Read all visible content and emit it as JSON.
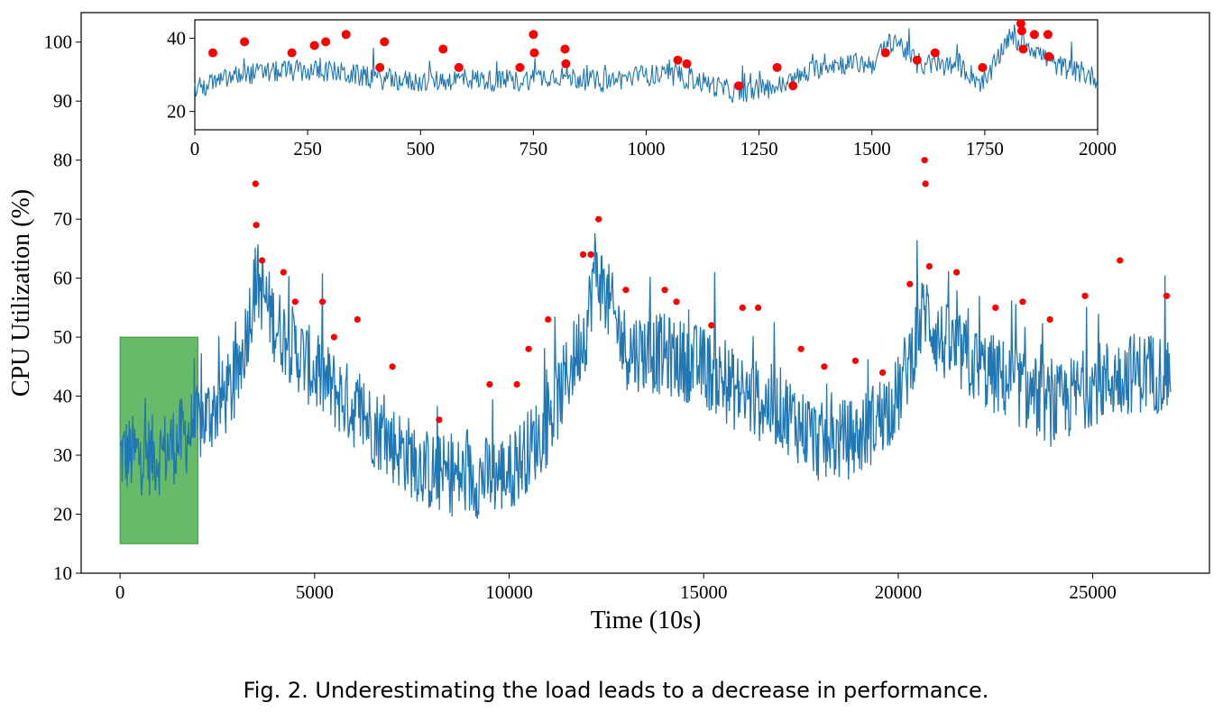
{
  "caption": "Fig. 2.  Underestimating the load leads to a decrease in performance.",
  "colors": {
    "line": "#1f77b4",
    "marker": "#ff0000",
    "highlight": "#2ca02c"
  },
  "chart_data": [
    {
      "type": "line",
      "title": "",
      "xlabel": "Time (10s)",
      "ylabel": "CPU Utilization (%)",
      "xlim": [
        -1000,
        28000
      ],
      "ylim": [
        10,
        105
      ],
      "xticks": [
        0,
        5000,
        10000,
        15000,
        20000,
        25000
      ],
      "yticks": [
        10,
        20,
        30,
        40,
        50,
        60,
        70,
        80,
        90,
        100
      ],
      "grid": false,
      "highlight_region": {
        "x": [
          0,
          2000
        ],
        "y": [
          15,
          50
        ]
      },
      "series_trend": {
        "x": [
          0,
          1000,
          2000,
          3000,
          3500,
          4000,
          5000,
          6000,
          7000,
          8000,
          9000,
          10000,
          11000,
          12000,
          12200,
          13000,
          14000,
          15000,
          16000,
          17000,
          18000,
          19000,
          20000,
          20700,
          21000,
          22000,
          23000,
          24000,
          25000,
          26000,
          27000
        ],
        "y": [
          30,
          30,
          35,
          42,
          60,
          52,
          44,
          38,
          32,
          27,
          26,
          27,
          35,
          52,
          62,
          48,
          47,
          45,
          40,
          38,
          32,
          33,
          40,
          55,
          50,
          45,
          42,
          38,
          42,
          44,
          44
        ]
      },
      "peaks": {
        "x": [
          3480,
          3500,
          3650,
          4200,
          4500,
          5200,
          5500,
          6100,
          7000,
          8200,
          9500,
          10200,
          10500,
          11000,
          11900,
          12100,
          12300,
          13000,
          14000,
          14300,
          15200,
          16000,
          16400,
          17500,
          18100,
          18900,
          19600,
          20300,
          20680,
          20700,
          20800,
          21500,
          22500,
          23200,
          23900,
          24800,
          25700,
          26900
        ],
        "y": [
          76,
          69,
          63,
          61,
          56,
          56,
          50,
          53,
          45,
          36,
          42,
          42,
          48,
          53,
          64,
          64,
          70,
          58,
          58,
          56,
          52,
          55,
          55,
          48,
          45,
          46,
          44,
          59,
          80,
          76,
          62,
          61,
          55,
          56,
          53,
          57,
          63,
          57
        ]
      }
    },
    {
      "type": "line",
      "title": "",
      "xlabel": "",
      "ylabel": "",
      "xlim": [
        0,
        2000
      ],
      "ylim": [
        15,
        45
      ],
      "xticks": [
        0,
        250,
        500,
        750,
        1000,
        1250,
        1500,
        1750,
        2000
      ],
      "yticks": [
        20,
        40
      ],
      "grid": false,
      "series_trend": {
        "x": [
          0,
          100,
          200,
          300,
          400,
          500,
          600,
          700,
          800,
          900,
          1000,
          1100,
          1200,
          1300,
          1400,
          1500,
          1550,
          1600,
          1700,
          1750,
          1800,
          1850,
          1900,
          2000
        ],
        "y": [
          26,
          30,
          31,
          31,
          29,
          28,
          29,
          28,
          30,
          28,
          30,
          29,
          25,
          27,
          33,
          33,
          40,
          33,
          32,
          27,
          40,
          38,
          33,
          29
        ]
      },
      "peaks": {
        "x": [
          40,
          110,
          215,
          265,
          290,
          335,
          410,
          420,
          550,
          585,
          720,
          750,
          752,
          820,
          822,
          1070,
          1090,
          1205,
          1290,
          1325,
          1530,
          1600,
          1640,
          1745,
          1830,
          1832,
          1835,
          1860,
          1890,
          1892
        ],
        "y": [
          36,
          39,
          36,
          38,
          39,
          41,
          32,
          39,
          37,
          32,
          32,
          41,
          36,
          37,
          33,
          34,
          33,
          27,
          32,
          27,
          36,
          34,
          36,
          32,
          44,
          42,
          37,
          41,
          41,
          35
        ]
      }
    }
  ]
}
